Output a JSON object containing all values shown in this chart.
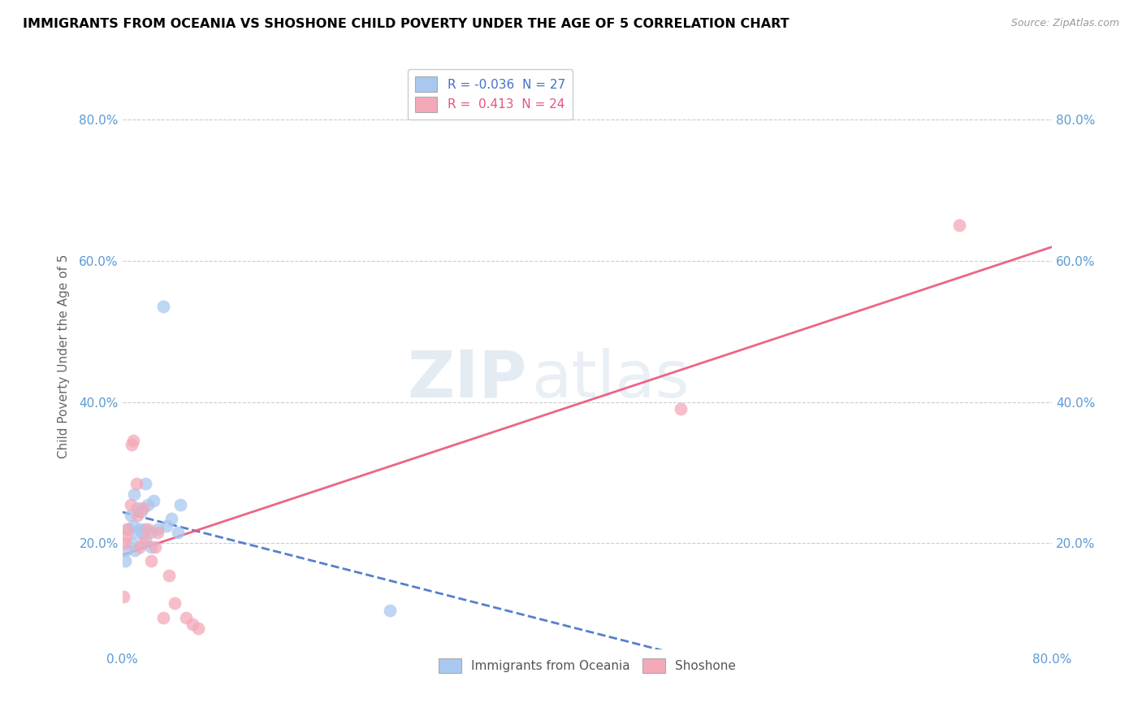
{
  "title": "IMMIGRANTS FROM OCEANIA VS SHOSHONE CHILD POVERTY UNDER THE AGE OF 5 CORRELATION CHART",
  "source": "Source: ZipAtlas.com",
  "ylabel": "Child Poverty Under the Age of 5",
  "xlim": [
    0.0,
    0.8
  ],
  "ylim": [
    0.05,
    0.88
  ],
  "ytick_labels": [
    "20.0%",
    "40.0%",
    "60.0%",
    "80.0%"
  ],
  "ytick_vals": [
    0.2,
    0.4,
    0.6,
    0.8
  ],
  "xtick_labels": [
    "0.0%",
    "80.0%"
  ],
  "legend_r1": "R = -0.036  N = 27",
  "legend_r2": "R =  0.413  N = 24",
  "blue_color": "#A8C8F0",
  "pink_color": "#F4A8B8",
  "blue_line_color": "#4472C4",
  "pink_line_color": "#E8557A",
  "watermark_zip": "ZIP",
  "watermark_atlas": "atlas",
  "blue_scatter_x": [
    0.002,
    0.003,
    0.005,
    0.007,
    0.008,
    0.009,
    0.01,
    0.011,
    0.012,
    0.013,
    0.015,
    0.016,
    0.017,
    0.018,
    0.019,
    0.02,
    0.022,
    0.024,
    0.025,
    0.027,
    0.03,
    0.035,
    0.038,
    0.042,
    0.048,
    0.05,
    0.23
  ],
  "blue_scatter_y": [
    0.175,
    0.19,
    0.22,
    0.24,
    0.2,
    0.225,
    0.27,
    0.19,
    0.215,
    0.25,
    0.22,
    0.245,
    0.215,
    0.2,
    0.22,
    0.285,
    0.255,
    0.215,
    0.195,
    0.26,
    0.22,
    0.535,
    0.225,
    0.235,
    0.215,
    0.255,
    0.105
  ],
  "pink_scatter_x": [
    0.001,
    0.002,
    0.003,
    0.004,
    0.007,
    0.008,
    0.009,
    0.012,
    0.013,
    0.015,
    0.018,
    0.02,
    0.022,
    0.025,
    0.028,
    0.03,
    0.035,
    0.04,
    0.045,
    0.055,
    0.06,
    0.065,
    0.48,
    0.72
  ],
  "pink_scatter_y": [
    0.125,
    0.2,
    0.21,
    0.22,
    0.255,
    0.34,
    0.345,
    0.285,
    0.24,
    0.195,
    0.25,
    0.205,
    0.22,
    0.175,
    0.195,
    0.215,
    0.095,
    0.155,
    0.115,
    0.095,
    0.085,
    0.08,
    0.39,
    0.65
  ]
}
